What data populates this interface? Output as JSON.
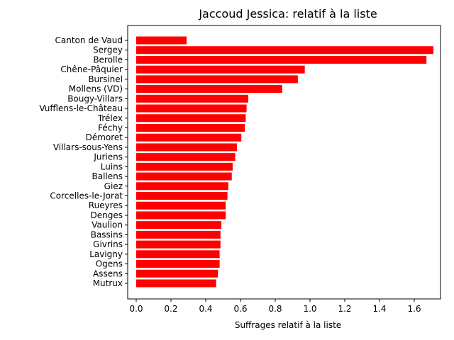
{
  "chart_data": {
    "type": "bar",
    "orientation": "horizontal",
    "title": "Jaccoud Jessica: relatif à la liste",
    "xlabel": "Suffrages relatif à la liste",
    "ylabel": "",
    "xlim": [
      0,
      1.8
    ],
    "xticks": [
      "0.0",
      "0.2",
      "0.4",
      "0.6",
      "0.8",
      "1.0",
      "1.2",
      "1.4",
      "1.6"
    ],
    "bar_color": "#ff0000",
    "grid": false,
    "categories": [
      "Canton de Vaud",
      "Sergey",
      "Berolle",
      "Chêne-Pâquier",
      "Bursinel",
      "Mollens (VD)",
      "Bougy-Villars",
      "Vufflens-le-Château",
      "Trélex",
      "Féchy",
      "Démoret",
      "Villars-sous-Yens",
      "Juriens",
      "Luins",
      "Ballens",
      "Giez",
      "Corcelles-le-Jorat",
      "Rueyres",
      "Denges",
      "Vaulion",
      "Bassins",
      "Givrins",
      "Lavigny",
      "Ogens",
      "Assens",
      "Mutrux"
    ],
    "values": [
      0.29,
      1.71,
      1.67,
      0.97,
      0.93,
      0.84,
      0.645,
      0.635,
      0.63,
      0.625,
      0.605,
      0.58,
      0.57,
      0.555,
      0.55,
      0.53,
      0.525,
      0.515,
      0.515,
      0.49,
      0.485,
      0.485,
      0.48,
      0.48,
      0.47,
      0.46
    ]
  }
}
